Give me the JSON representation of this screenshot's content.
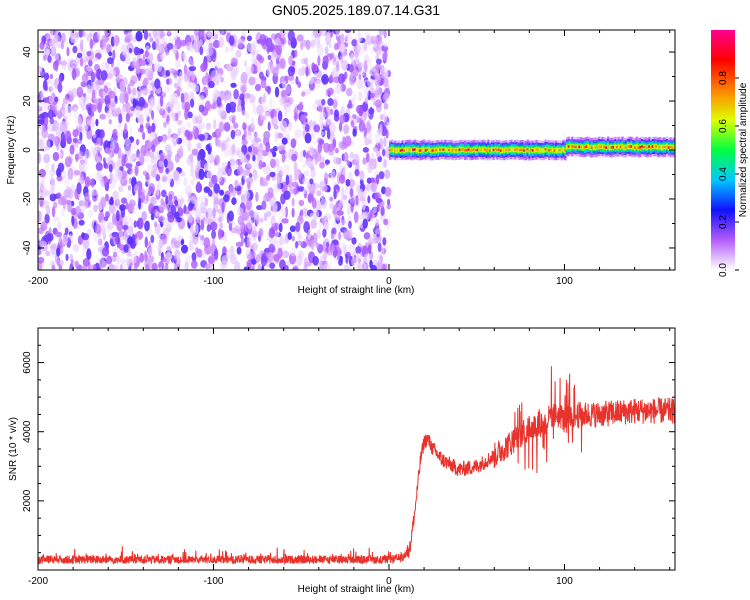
{
  "figure_title": "GN05.2025.189.07.14.G31",
  "chart_data": [
    {
      "type": "heatmap",
      "xlabel": "Height of straight line (km)",
      "ylabel": "Frequency (Hz)",
      "xlim": [
        -200,
        163
      ],
      "ylim": [
        -49,
        49
      ],
      "x_ticks": [
        -200,
        -100,
        0,
        100
      ],
      "y_ticks": [
        -40,
        -20,
        0,
        20,
        40
      ],
      "grid": false,
      "colorbar": {
        "label": "Normalized spectral amplitude",
        "range": [
          0,
          1
        ],
        "ticks": [
          0.0,
          0.2,
          0.4,
          0.6,
          0.8
        ],
        "colors": [
          "#ffffff",
          "#b45cff",
          "#1010ff",
          "#00c8ff",
          "#00ff40",
          "#e0ff00",
          "#ff8000",
          "#ff0000",
          "#ff0090"
        ]
      },
      "regions": [
        {
          "x_range": [
            -200,
            0
          ],
          "frequency_range": [
            -49,
            49
          ],
          "pattern": "broadband noise",
          "amplitude": [
            0.0,
            0.2
          ]
        },
        {
          "x_range": [
            0,
            163
          ],
          "frequency_range": [
            -4,
            4
          ],
          "pattern": "narrow carrier line",
          "center_frequency": 0,
          "peak_amplitude": 0.9
        }
      ]
    },
    {
      "type": "line",
      "xlabel": "Height of straight line (km)",
      "ylabel": "SNR (10 * v/v)",
      "xlim": [
        -200,
        163
      ],
      "ylim": [
        0,
        7000
      ],
      "x_ticks": [
        -200,
        -100,
        0,
        100
      ],
      "y_ticks": [
        2000,
        4000,
        6000
      ],
      "grid": false,
      "series": [
        {
          "color": "#e8322c",
          "x": [
            -200,
            -150,
            -100,
            -50,
            0,
            8,
            12,
            15,
            18,
            20,
            22,
            25,
            30,
            40,
            50,
            60,
            70,
            80,
            90,
            95,
            100,
            110,
            120,
            140,
            163
          ],
          "y": [
            300,
            300,
            300,
            300,
            300,
            350,
            650,
            1800,
            3200,
            3700,
            3800,
            3500,
            3200,
            2900,
            3000,
            3300,
            3700,
            4100,
            4300,
            4500,
            4400,
            4500,
            4500,
            4600,
            4600
          ]
        }
      ]
    }
  ]
}
